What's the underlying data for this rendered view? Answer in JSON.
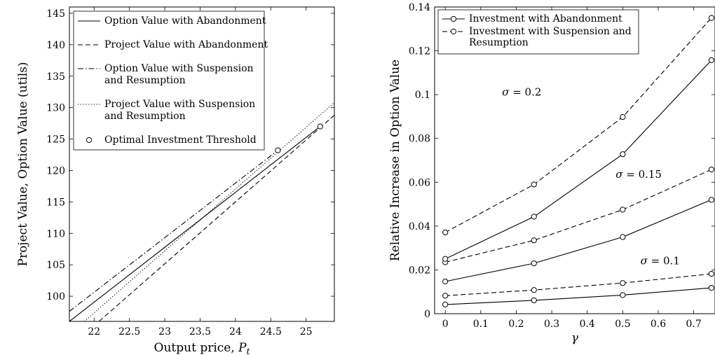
{
  "chart_data": [
    {
      "type": "line",
      "xlabel": "Output price, ",
      "xlabel_symbol": "P",
      "xlabel_subscript": "t",
      "ylabel": "Project Value, Option Value (utils)",
      "xlim": [
        21.65,
        25.4
      ],
      "ylim": [
        96,
        146
      ],
      "xticks": [
        22,
        22.5,
        23,
        23.5,
        24,
        24.5,
        25
      ],
      "xtick_labels": [
        "22",
        "22.5",
        "23",
        "23.5",
        "24",
        "24.5",
        "25"
      ],
      "yticks": [
        100,
        105,
        110,
        115,
        120,
        125,
        130,
        135,
        140,
        145
      ],
      "ytick_labels": [
        "100",
        "105",
        "110",
        "115",
        "120",
        "125",
        "130",
        "135",
        "140",
        "145"
      ],
      "legend_position": "top-left",
      "series": [
        {
          "name": "Option Value with Abandonment",
          "style": "solid",
          "points": [
            [
              21.65,
              96.0
            ],
            [
              25.2,
              127.0
            ]
          ]
        },
        {
          "name": "Project Value with Abandonment",
          "style": "dashed",
          "points": [
            [
              22.07,
              96.0
            ],
            [
              25.4,
              128.8
            ]
          ]
        },
        {
          "name_lines": [
            "Option Value with Suspension",
            "and Resumption"
          ],
          "style": "dashdot",
          "points": [
            [
              21.65,
              97.6
            ],
            [
              24.6,
              123.2
            ]
          ]
        },
        {
          "name_lines": [
            "Project Value with Suspension",
            "and Resumption"
          ],
          "style": "dotted",
          "points": [
            [
              21.86,
              96.0
            ],
            [
              25.4,
              130.8
            ]
          ]
        }
      ],
      "markers": {
        "name": "Optimal Investment Threshold",
        "points": [
          [
            25.2,
            127.0
          ],
          [
            24.6,
            123.2
          ]
        ]
      }
    },
    {
      "type": "line",
      "xlabel": "γ",
      "ylabel": "Relative Increase in Option Value",
      "xlim": [
        -0.03,
        0.76
      ],
      "ylim": [
        0,
        0.14
      ],
      "xticks": [
        0,
        0.1,
        0.2,
        0.3,
        0.4,
        0.5,
        0.6,
        0.7
      ],
      "xtick_labels": [
        "0",
        "0.1",
        "0.2",
        "0.3",
        "0.4",
        "0.5",
        "0.6",
        "0.7"
      ],
      "yticks": [
        0,
        0.02,
        0.04,
        0.06,
        0.08,
        0.1,
        0.12,
        0.14
      ],
      "ytick_labels": [
        "0",
        "0.02",
        "0.04",
        "0.06",
        "0.08",
        "0.1",
        "0.12",
        "0.14"
      ],
      "legend_position": "top-left",
      "legend": [
        {
          "lines": [
            "Investment with Abandonment"
          ],
          "style": "solid"
        },
        {
          "lines": [
            "Investment with Suspension and",
            "Resumption"
          ],
          "style": "dashed"
        }
      ],
      "x": [
        0,
        0.25,
        0.5,
        0.75
      ],
      "series": [
        {
          "style": "solid",
          "values": [
            0.0042,
            0.0061,
            0.0085,
            0.0118
          ]
        },
        {
          "style": "dashed",
          "values": [
            0.0082,
            0.0108,
            0.014,
            0.0182
          ]
        },
        {
          "style": "solid",
          "values": [
            0.0147,
            0.023,
            0.035,
            0.052
          ]
        },
        {
          "style": "dashed",
          "values": [
            0.0235,
            0.0335,
            0.0475,
            0.0658
          ]
        },
        {
          "style": "solid",
          "values": [
            0.025,
            0.0443,
            0.0728,
            0.1157
          ]
        },
        {
          "style": "dashed",
          "values": [
            0.0371,
            0.059,
            0.0898,
            0.135
          ]
        }
      ],
      "annotations": [
        {
          "symbol": "σ",
          "text": " = 0.1",
          "x": 0.55,
          "y": 0.0225
        },
        {
          "symbol": "σ",
          "text": " = 0.15",
          "x": 0.48,
          "y": 0.062
        },
        {
          "symbol": "σ",
          "text": " = 0.2",
          "x": 0.16,
          "y": 0.0995
        }
      ]
    }
  ]
}
